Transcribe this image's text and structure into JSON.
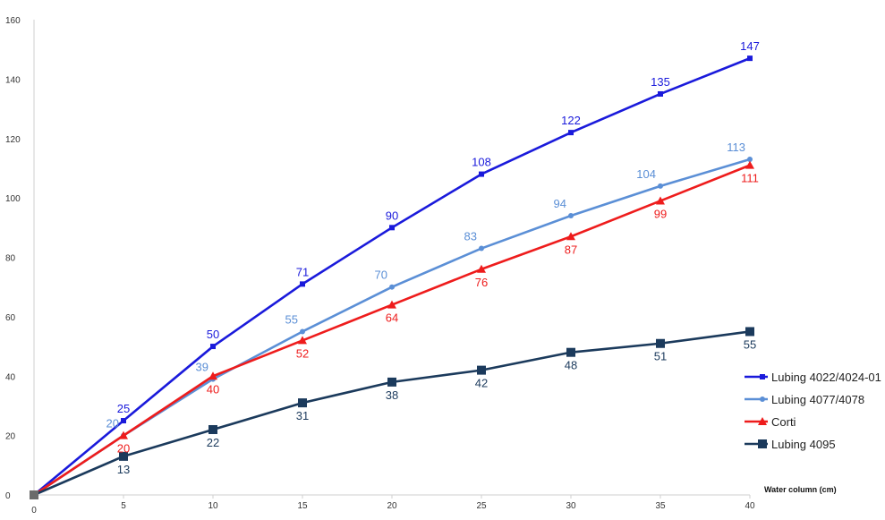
{
  "chart_data": {
    "type": "line",
    "x": [
      0,
      5,
      10,
      15,
      20,
      25,
      30,
      35,
      40
    ],
    "xlabel": "Water column (cm)",
    "ylabel": "",
    "title": "",
    "xlim": [
      0,
      40
    ],
    "ylim": [
      0,
      160
    ],
    "x_ticks": [
      "0",
      "5",
      "10",
      "15",
      "20",
      "25",
      "30",
      "35",
      "40"
    ],
    "y_ticks": [
      "0",
      "20",
      "40",
      "60",
      "80",
      "100",
      "120",
      "140",
      "160"
    ],
    "grid": false,
    "legend_position": "right",
    "series": [
      {
        "name": "Lubing 4022/4024-01",
        "color": "#1a1adb",
        "marker": "small-square",
        "values": [
          0,
          25,
          50,
          71,
          90,
          108,
          122,
          135,
          147
        ],
        "labels": [
          "",
          "25",
          "50",
          "71",
          "90",
          "108",
          "122",
          "135",
          "147"
        ],
        "label_position": "above"
      },
      {
        "name": "Lubing 4077/4078",
        "color": "#5b8fd6",
        "marker": "circle",
        "values": [
          0,
          20,
          39,
          55,
          70,
          83,
          94,
          104,
          113
        ],
        "labels": [
          "",
          "20",
          "39",
          "55",
          "70",
          "83",
          "94",
          "104",
          "113"
        ],
        "label_position": "above-left"
      },
      {
        "name": "Corti",
        "color": "#ee1c1c",
        "marker": "triangle",
        "values": [
          0,
          20,
          40,
          52,
          64,
          76,
          87,
          99,
          111
        ],
        "labels": [
          "",
          "20",
          "40",
          "52",
          "64",
          "76",
          "87",
          "99",
          "111"
        ],
        "label_position": "below"
      },
      {
        "name": "Lubing 4095",
        "color": "#1b3a5c",
        "marker": "square",
        "values": [
          0,
          13,
          22,
          31,
          38,
          42,
          48,
          51,
          55
        ],
        "labels": [
          "",
          "13",
          "22",
          "31",
          "38",
          "42",
          "48",
          "51",
          "55"
        ],
        "label_position": "below"
      }
    ]
  }
}
